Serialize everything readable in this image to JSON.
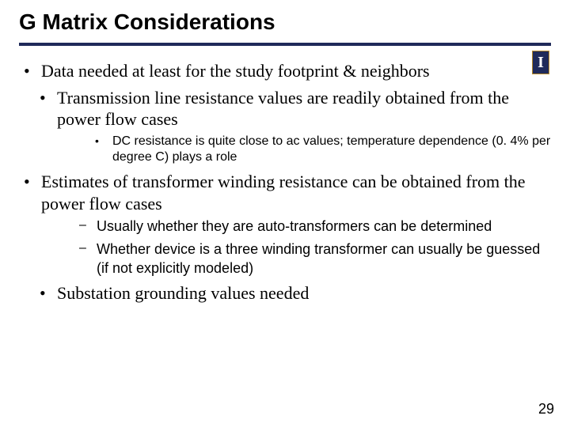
{
  "title": "G Matrix Considerations",
  "logo_letter": "I",
  "colors": {
    "rule": "#1f2a5a",
    "logo_bg": "#1f2a5a",
    "logo_border": "#b88a2a",
    "logo_fg": "#ffffff",
    "text": "#000000",
    "background": "#ffffff"
  },
  "bullets": {
    "b1": "Data needed at least for the study footprint & neighbors",
    "b2": "Transmission line resistance values are readily obtained from the power flow cases",
    "b2_1": "DC resistance is quite close to ac values;  temperature dependence (0. 4% per degree C) plays a role",
    "b3": "Estimates of transformer winding resistance can be obtained from the power flow cases",
    "b3_1": "Usually whether they are auto-transformers can be determined",
    "b3_2": "Whether device is a three winding transformer can usually be guessed (if not explicitly modeled)",
    "b4": "Substation grounding values needed"
  },
  "page_number": "29"
}
